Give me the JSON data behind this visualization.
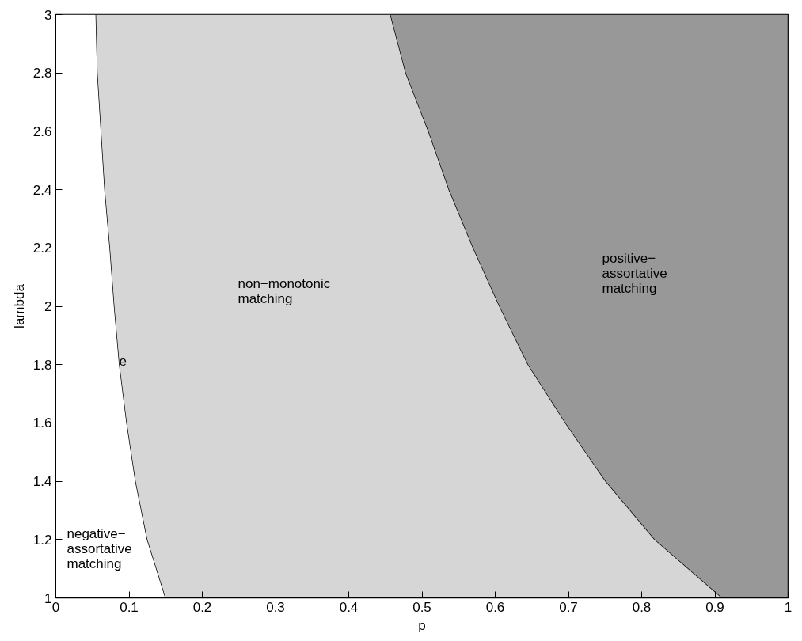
{
  "chart_data": {
    "type": "area",
    "orientation": "horizontal",
    "stacked": true,
    "xlabel": "p",
    "ylabel": "lambda",
    "xlim": [
      0,
      1
    ],
    "ylim": [
      1,
      3
    ],
    "xticks": [
      0,
      0.1,
      0.2,
      0.3,
      0.4,
      0.5,
      0.6,
      0.7,
      0.8,
      0.9,
      1
    ],
    "yticks": [
      1,
      1.2,
      1.4,
      1.6,
      1.8,
      2,
      2.2,
      2.4,
      2.6,
      2.8,
      3
    ],
    "grid": false,
    "x": [
      1,
      1.2,
      1.4,
      1.6,
      1.8,
      2,
      2.2,
      2.4,
      2.6,
      2.8,
      3
    ],
    "series": [
      {
        "color": "#ffffff",
        "values": [
          0.15,
          0.125,
          0.109,
          0.097,
          0.087,
          0.08,
          0.074,
          0.067,
          0.062,
          0.057,
          0.055
        ]
      },
      {
        "color": "#d6d6d6",
        "values": [
          0.76,
          0.693,
          0.642,
          0.599,
          0.558,
          0.526,
          0.496,
          0.47,
          0.447,
          0.421,
          0.402
        ]
      },
      {
        "color": "#989898",
        "values": [
          0.09,
          0.182,
          0.249,
          0.304,
          0.355,
          0.394,
          0.43,
          0.463,
          0.491,
          0.522,
          0.543
        ]
      }
    ],
    "annotations": [
      "negative−\nassortative\nmatching",
      "non−monotonic\nmatching",
      "positive−\nassortative\nmatching",
      "e"
    ]
  }
}
